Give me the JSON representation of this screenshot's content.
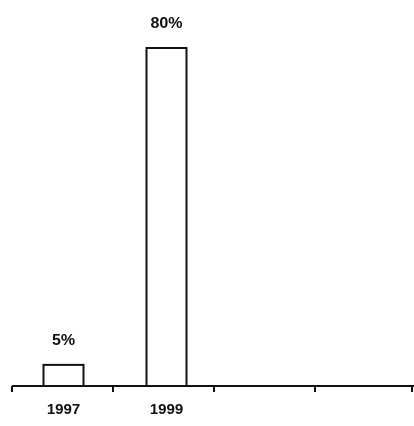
{
  "chart_data": {
    "type": "bar",
    "categories": [
      "1997",
      "1999"
    ],
    "values": [
      5,
      80
    ],
    "value_labels": [
      "5%",
      "80%"
    ],
    "title": "",
    "xlabel": "",
    "ylabel": "",
    "ylim": [
      0,
      85
    ],
    "grid": false,
    "legend": "none",
    "colors": {
      "bar_fill": "#ffffff",
      "bar_stroke": "#111111",
      "axis": "#111111",
      "text": "#111111"
    }
  }
}
